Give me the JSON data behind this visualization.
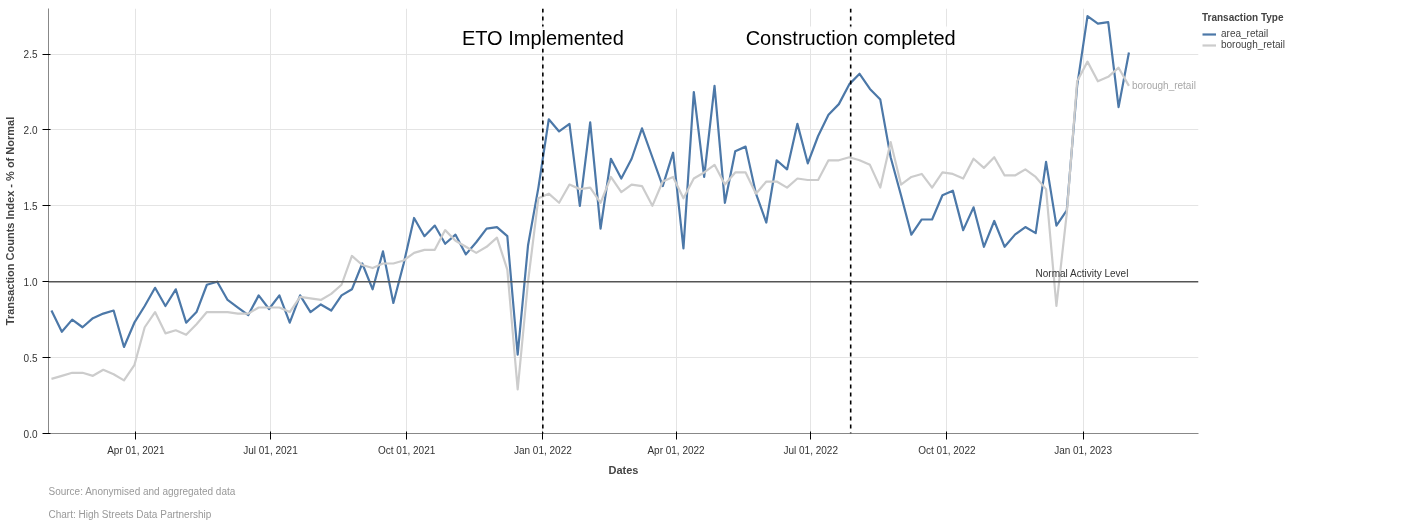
{
  "chart_data": {
    "type": "line",
    "xlabel": "Dates",
    "ylabel": "Transaction Counts Index - % of Normal",
    "legend_title": "Transaction Type",
    "legend": "top right",
    "grid": true,
    "marker": "none",
    "line_style": "solid",
    "x": [
      "2021-02-03",
      "2021-02-10",
      "2021-02-17",
      "2021-02-24",
      "2021-03-03",
      "2021-03-10",
      "2021-03-17",
      "2021-03-24",
      "2021-03-31",
      "2021-04-07",
      "2021-04-14",
      "2021-04-21",
      "2021-04-28",
      "2021-05-05",
      "2021-05-12",
      "2021-05-19",
      "2021-05-26",
      "2021-06-02",
      "2021-06-09",
      "2021-06-16",
      "2021-06-23",
      "2021-06-30",
      "2021-07-07",
      "2021-07-14",
      "2021-07-21",
      "2021-07-28",
      "2021-08-04",
      "2021-08-11",
      "2021-08-18",
      "2021-08-25",
      "2021-09-01",
      "2021-09-08",
      "2021-09-15",
      "2021-09-22",
      "2021-09-29",
      "2021-10-06",
      "2021-10-13",
      "2021-10-20",
      "2021-10-27",
      "2021-11-03",
      "2021-11-10",
      "2021-11-17",
      "2021-11-24",
      "2021-12-01",
      "2021-12-08",
      "2021-12-15",
      "2021-12-22",
      "2021-12-29",
      "2022-01-05",
      "2022-01-12",
      "2022-01-19",
      "2022-01-26",
      "2022-02-02",
      "2022-02-09",
      "2022-02-16",
      "2022-02-23",
      "2022-03-02",
      "2022-03-09",
      "2022-03-16",
      "2022-03-23",
      "2022-03-30",
      "2022-04-06",
      "2022-04-13",
      "2022-04-20",
      "2022-04-27",
      "2022-05-04",
      "2022-05-11",
      "2022-05-18",
      "2022-05-25",
      "2022-06-01",
      "2022-06-08",
      "2022-06-15",
      "2022-06-22",
      "2022-06-29",
      "2022-07-06",
      "2022-07-13",
      "2022-07-20",
      "2022-07-27",
      "2022-08-03",
      "2022-08-10",
      "2022-08-17",
      "2022-08-24",
      "2022-08-31",
      "2022-09-07",
      "2022-09-14",
      "2022-09-21",
      "2022-09-28",
      "2022-10-05",
      "2022-10-12",
      "2022-10-19",
      "2022-10-26",
      "2022-11-02",
      "2022-11-09",
      "2022-11-16",
      "2022-11-23",
      "2022-11-30",
      "2022-12-07",
      "2022-12-14",
      "2022-12-21",
      "2022-12-28",
      "2023-01-04",
      "2023-01-11",
      "2023-01-18",
      "2023-01-25",
      "2023-02-01"
    ],
    "xlim": [
      "2021-02-01",
      "2023-03-20"
    ],
    "ylim": [
      0,
      2.8
    ],
    "xticks": [
      {
        "value": "2021-04-01",
        "label": "Apr 01, 2021"
      },
      {
        "value": "2021-07-01",
        "label": "Jul 01, 2021"
      },
      {
        "value": "2021-10-01",
        "label": "Oct 01, 2021"
      },
      {
        "value": "2022-01-01",
        "label": "Jan 01, 2022"
      },
      {
        "value": "2022-04-01",
        "label": "Apr 01, 2022"
      },
      {
        "value": "2022-07-01",
        "label": "Jul 01, 2022"
      },
      {
        "value": "2022-10-01",
        "label": "Oct 01, 2022"
      },
      {
        "value": "2023-01-01",
        "label": "Jan 01, 2023"
      }
    ],
    "yticks": [
      {
        "value": 0,
        "label": "0.0"
      },
      {
        "value": 0.5,
        "label": "0.5"
      },
      {
        "value": 1,
        "label": "1.0"
      },
      {
        "value": 1.5,
        "label": "1.5"
      },
      {
        "value": 2,
        "label": "2.0"
      },
      {
        "value": 2.5,
        "label": "2.5"
      }
    ],
    "series": [
      {
        "name": "area_retail",
        "color": "#4c78a8",
        "values": [
          0.81,
          0.67,
          0.75,
          0.7,
          0.76,
          0.79,
          0.81,
          0.57,
          0.73,
          0.84,
          0.96,
          0.84,
          0.95,
          0.73,
          0.8,
          0.98,
          1.0,
          0.88,
          0.83,
          0.78,
          0.91,
          0.82,
          0.91,
          0.73,
          0.91,
          0.8,
          0.85,
          0.81,
          0.91,
          0.95,
          1.12,
          0.95,
          1.2,
          0.86,
          1.12,
          1.42,
          1.3,
          1.37,
          1.25,
          1.31,
          1.18,
          1.26,
          1.35,
          1.36,
          1.3,
          0.52,
          1.24,
          1.62,
          2.07,
          1.99,
          2.04,
          1.5,
          2.05,
          1.35,
          1.81,
          1.68,
          1.81,
          2.01,
          1.82,
          1.63,
          1.85,
          1.22,
          2.25,
          1.69,
          2.29,
          1.52,
          1.86,
          1.89,
          1.58,
          1.39,
          1.8,
          1.74,
          2.04,
          1.78,
          1.96,
          2.1,
          2.17,
          2.3,
          2.37,
          2.27,
          2.2,
          1.82,
          1.57,
          1.31,
          1.41,
          1.41,
          1.57,
          1.6,
          1.34,
          1.49,
          1.23,
          1.4,
          1.23,
          1.31,
          1.36,
          1.32,
          1.79,
          1.37,
          1.47,
          2.29,
          2.75,
          2.7,
          2.71,
          2.15,
          2.51
        ]
      },
      {
        "name": "borough_retail",
        "color": "#cccccc",
        "values": [
          0.36,
          0.38,
          0.4,
          0.4,
          0.38,
          0.42,
          0.39,
          0.35,
          0.45,
          0.7,
          0.8,
          0.66,
          0.68,
          0.65,
          0.72,
          0.8,
          0.8,
          0.8,
          0.79,
          0.79,
          0.83,
          0.83,
          0.83,
          0.8,
          0.9,
          0.89,
          0.88,
          0.92,
          0.98,
          1.17,
          1.11,
          1.09,
          1.12,
          1.12,
          1.14,
          1.19,
          1.21,
          1.21,
          1.34,
          1.27,
          1.23,
          1.19,
          1.23,
          1.29,
          1.08,
          0.29,
          1.0,
          1.55,
          1.58,
          1.52,
          1.64,
          1.61,
          1.62,
          1.52,
          1.69,
          1.59,
          1.64,
          1.63,
          1.5,
          1.66,
          1.69,
          1.55,
          1.68,
          1.72,
          1.77,
          1.64,
          1.72,
          1.72,
          1.58,
          1.66,
          1.66,
          1.62,
          1.68,
          1.67,
          1.67,
          1.8,
          1.8,
          1.82,
          1.8,
          1.77,
          1.62,
          1.92,
          1.64,
          1.69,
          1.71,
          1.62,
          1.72,
          1.71,
          1.68,
          1.81,
          1.75,
          1.82,
          1.7,
          1.7,
          1.74,
          1.69,
          1.61,
          0.84,
          1.45,
          2.32,
          2.45,
          2.32,
          2.35,
          2.41,
          2.29
        ]
      }
    ],
    "ref_lines": [
      {
        "axis": "y",
        "value": 1,
        "label": "Normal Activity Level",
        "color": "#555555",
        "line_style": "solid"
      },
      {
        "axis": "x",
        "value": "2022-01-01",
        "label": "ETO Implemented",
        "color": "#000000",
        "line_style": "dashed"
      },
      {
        "axis": "x",
        "value": "2022-07-28",
        "label": "Construction completed",
        "color": "#000000",
        "line_style": "dashed"
      }
    ],
    "annotations": [
      {
        "text": "borough_retail",
        "x": "2023-02-01",
        "y": 2.29
      },
      "Source: Anonymised and aggregated data",
      "Chart: High Streets Data Partnership"
    ]
  }
}
